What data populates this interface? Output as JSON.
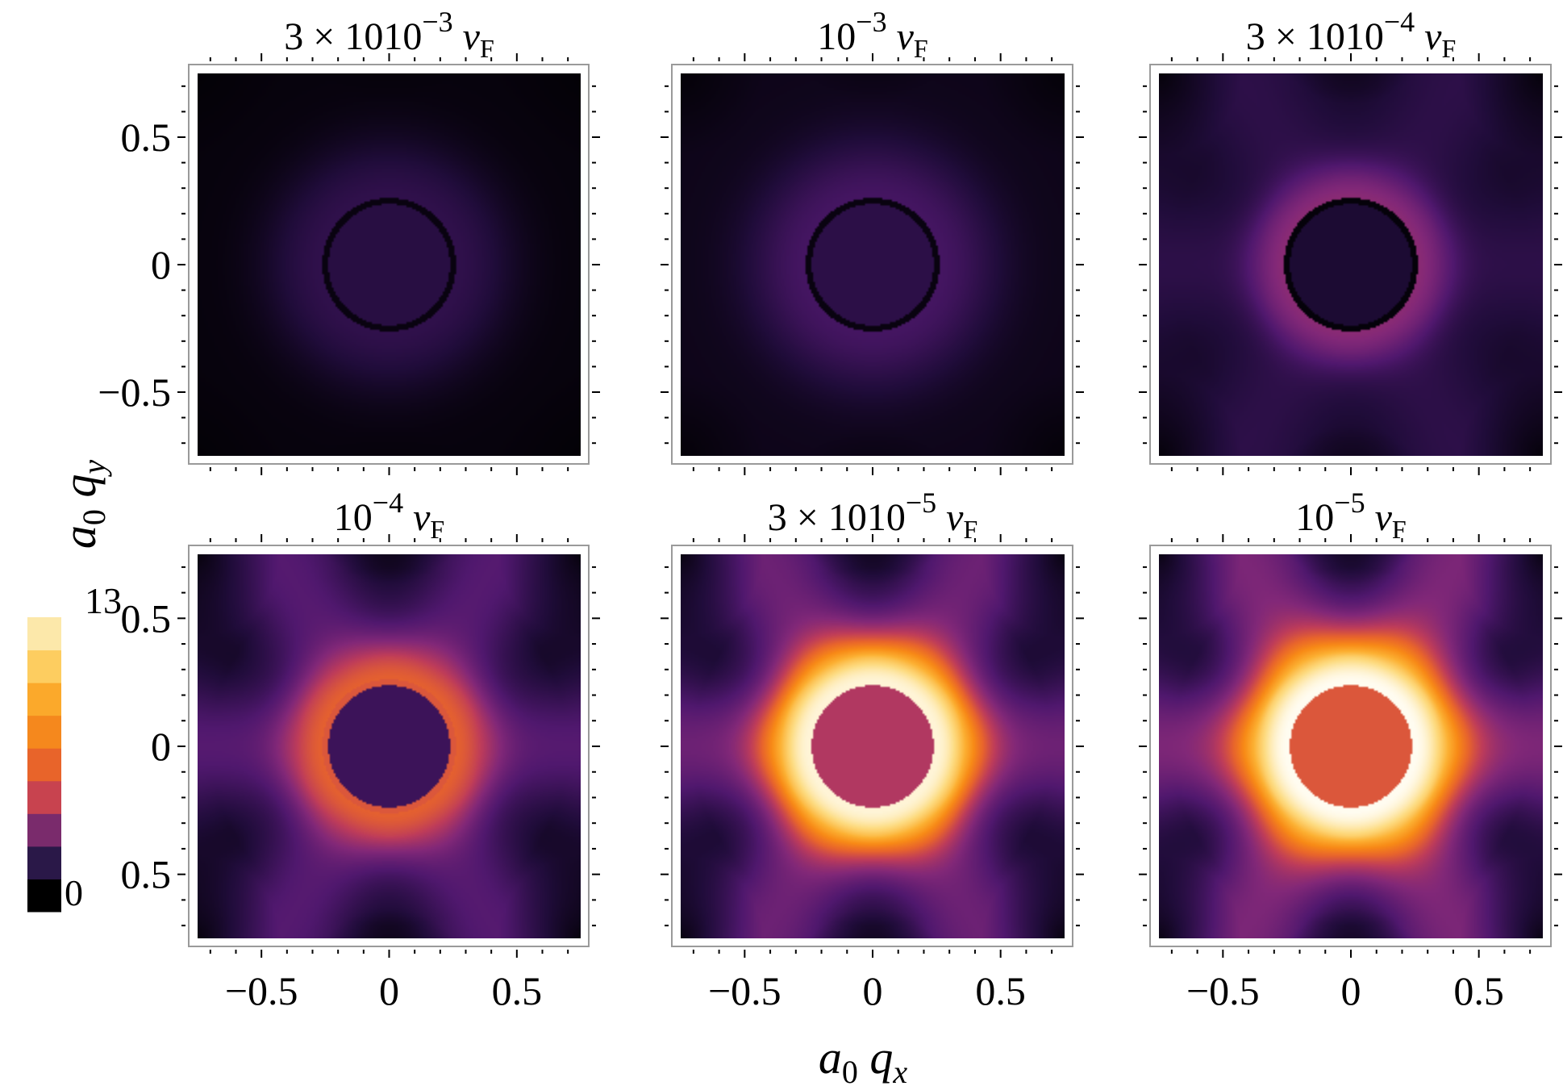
{
  "chart_data": {
    "type": "heatmap",
    "xlabel": "a0 qx",
    "ylabel": "a0 qy",
    "xlim": [
      -0.75,
      0.75
    ],
    "ylim": [
      -0.75,
      0.75
    ],
    "x_ticks": [
      -0.5,
      0,
      0.5
    ],
    "y_ticks": [
      -0.5,
      0,
      0.5
    ],
    "x_tick_labels": [
      "−0.5",
      "0",
      "0.5"
    ],
    "y_tick_labels_top_row": [
      "−0.5",
      "0",
      "0.5"
    ],
    "y_tick_labels_bottom_row": [
      "0.5",
      "0",
      "0.5"
    ],
    "colorbar": {
      "min": 0,
      "max": 13,
      "min_label": "0",
      "max_label": "13",
      "colors": [
        "#000000",
        "#2a1848",
        "#7a2b6c",
        "#c8434f",
        "#e8642a",
        "#f5881d",
        "#fba92b",
        "#fdcd60",
        "#fce8aa"
      ]
    },
    "panels": [
      {
        "title": {
          "coef": "3 × 10",
          "exp": "−3",
          "v": "v",
          "sub": "F"
        },
        "ring_radius": 0.25,
        "inner_level": 1.1,
        "ring_level": 0.25,
        "peak_level": 1.3,
        "halo_width": 0.3,
        "rim_level": 0.15,
        "hex_contrast": 0.0,
        "edge_level": 0.25
      },
      {
        "title": {
          "coef": "",
          "exp": "−3",
          "v": "v",
          "sub": "F"
        },
        "ring_radius": 0.25,
        "inner_level": 1.2,
        "ring_level": 0.25,
        "peak_level": 1.8,
        "halo_width": 0.3,
        "rim_level": 0.35,
        "hex_contrast": 0.0,
        "edge_level": 0.25
      },
      {
        "title": {
          "coef": "3 × 10",
          "exp": "−4",
          "v": "v",
          "sub": "F"
        },
        "ring_radius": 0.25,
        "inner_level": 0.8,
        "ring_level": 0.15,
        "peak_level": 3.6,
        "halo_width": 0.18,
        "rim_level": 1.2,
        "hex_contrast": 0.6,
        "edge_level": 0.1
      },
      {
        "title": {
          "coef": "",
          "exp": "−4",
          "v": "v",
          "sub": "F"
        },
        "ring_radius": 0.25,
        "inner_level": 1.6,
        "ring_level": 6.0,
        "peak_level": 6.4,
        "halo_width": 0.2,
        "rim_level": 2.2,
        "hex_contrast": 1.0,
        "edge_level": 0.05
      },
      {
        "title": {
          "coef": "3 × 10",
          "exp": "−5",
          "v": "v",
          "sub": "F"
        },
        "ring_radius": 0.25,
        "inner_level": 4.6,
        "ring_level": 12.6,
        "peak_level": 12.6,
        "halo_width": 0.22,
        "rim_level": 2.8,
        "hex_contrast": 1.0,
        "edge_level": 0.0
      },
      {
        "title": {
          "coef": "",
          "exp": "−5",
          "v": "v",
          "sub": "F"
        },
        "ring_radius": 0.25,
        "inner_level": 6.0,
        "ring_level": 13.0,
        "peak_level": 13.0,
        "halo_width": 0.24,
        "rim_level": 3.2,
        "hex_contrast": 1.0,
        "edge_level": 0.0
      }
    ]
  }
}
